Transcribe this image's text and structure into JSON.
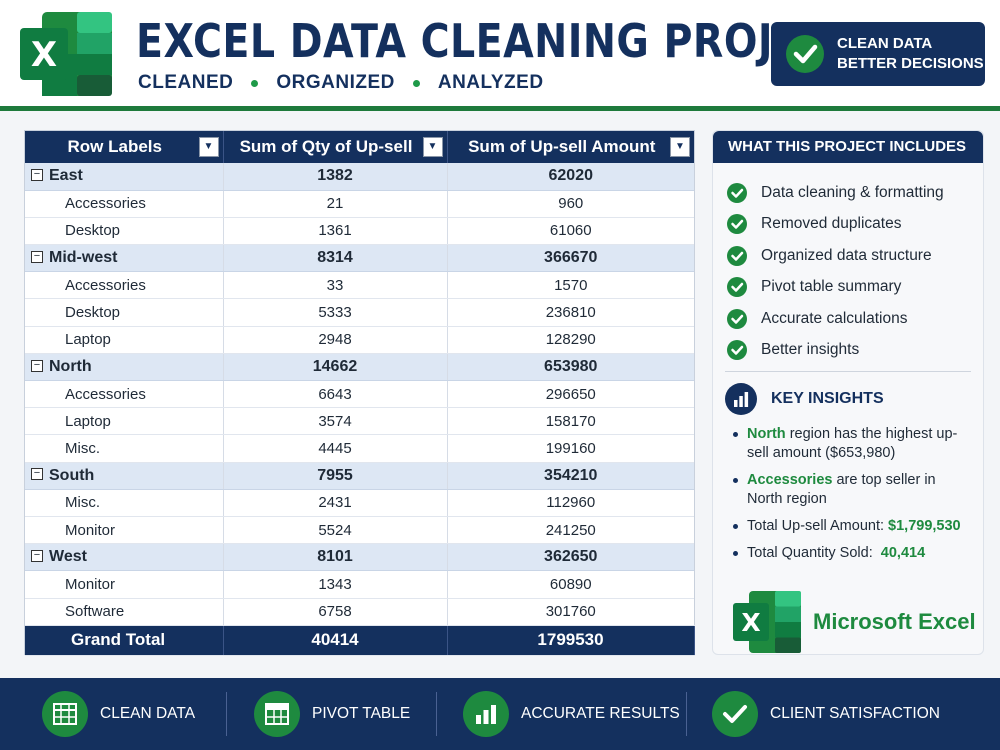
{
  "header": {
    "logo_letter": "X",
    "title": "EXCEL DATA CLEANING PROJECT",
    "subtitle": [
      "CLEANED",
      "ORGANIZED",
      "ANALYZED"
    ],
    "badge": [
      "CLEAN DATA",
      "BETTER DECISIONS"
    ],
    "colors": {
      "navy": "#14305e",
      "green": "#1e8a3f"
    }
  },
  "table": {
    "headers": [
      "Row Labels",
      "Sum of Qty of Up-sell",
      "Sum of Up-sell Amount"
    ],
    "filter_icon": "dropdown-arrow-icon",
    "regions": [
      {
        "name": "East",
        "qty": "1382",
        "amount": "62020",
        "items": [
          {
            "name": "Accessories",
            "qty": "21",
            "amount": "960"
          },
          {
            "name": "Desktop",
            "qty": "1361",
            "amount": "61060"
          }
        ]
      },
      {
        "name": "Mid-west",
        "qty": "8314",
        "amount": "366670",
        "items": [
          {
            "name": "Accessories",
            "qty": "33",
            "amount": "1570"
          },
          {
            "name": "Desktop",
            "qty": "5333",
            "amount": "236810"
          },
          {
            "name": "Laptop",
            "qty": "2948",
            "amount": "128290"
          }
        ]
      },
      {
        "name": "North",
        "qty": "14662",
        "amount": "653980",
        "items": [
          {
            "name": "Accessories",
            "qty": "6643",
            "amount": "296650"
          },
          {
            "name": "Laptop",
            "qty": "3574",
            "amount": "158170"
          },
          {
            "name": "Misc.",
            "qty": "4445",
            "amount": "199160"
          }
        ]
      },
      {
        "name": "South",
        "qty": "7955",
        "amount": "354210",
        "items": [
          {
            "name": "Misc.",
            "qty": "2431",
            "amount": "112960"
          },
          {
            "name": "Monitor",
            "qty": "5524",
            "amount": "241250"
          }
        ]
      },
      {
        "name": "West",
        "qty": "8101",
        "amount": "362650",
        "items": [
          {
            "name": "Monitor",
            "qty": "1343",
            "amount": "60890"
          },
          {
            "name": "Software",
            "qty": "6758",
            "amount": "301760"
          }
        ]
      }
    ],
    "grand_total": {
      "label": "Grand Total",
      "qty": "40414",
      "amount": "1799530"
    }
  },
  "side": {
    "title": "WHAT THIS PROJECT INCLUDES",
    "includes": [
      "Data cleaning & formatting",
      "Removed duplicates",
      "Organized data structure",
      "Pivot table summary",
      "Accurate calculations",
      "Better insights"
    ],
    "insights_title": "KEY INSIGHTS",
    "insights": [
      {
        "hl": "North",
        "text": " region has the highest up-sell amount ($653,980)"
      },
      {
        "hl": "Accessories",
        "text": " are top seller in North region"
      },
      {
        "pre": "Total Up-sell Amount: ",
        "hl_end": "$1,799,530"
      },
      {
        "pre": "Total Quantity Sold:  ",
        "hl_end": "40,414"
      }
    ],
    "brand": "Microsoft Excel"
  },
  "footer": {
    "items": [
      {
        "label": "CLEAN DATA",
        "icon": "grid-sheet-icon"
      },
      {
        "label": "PIVOT TABLE",
        "icon": "pivot-table-icon"
      },
      {
        "label": "ACCURATE RESULTS",
        "icon": "bar-chart-icon"
      },
      {
        "label": "CLIENT SATISFACTION",
        "icon": "check-icon"
      }
    ]
  }
}
